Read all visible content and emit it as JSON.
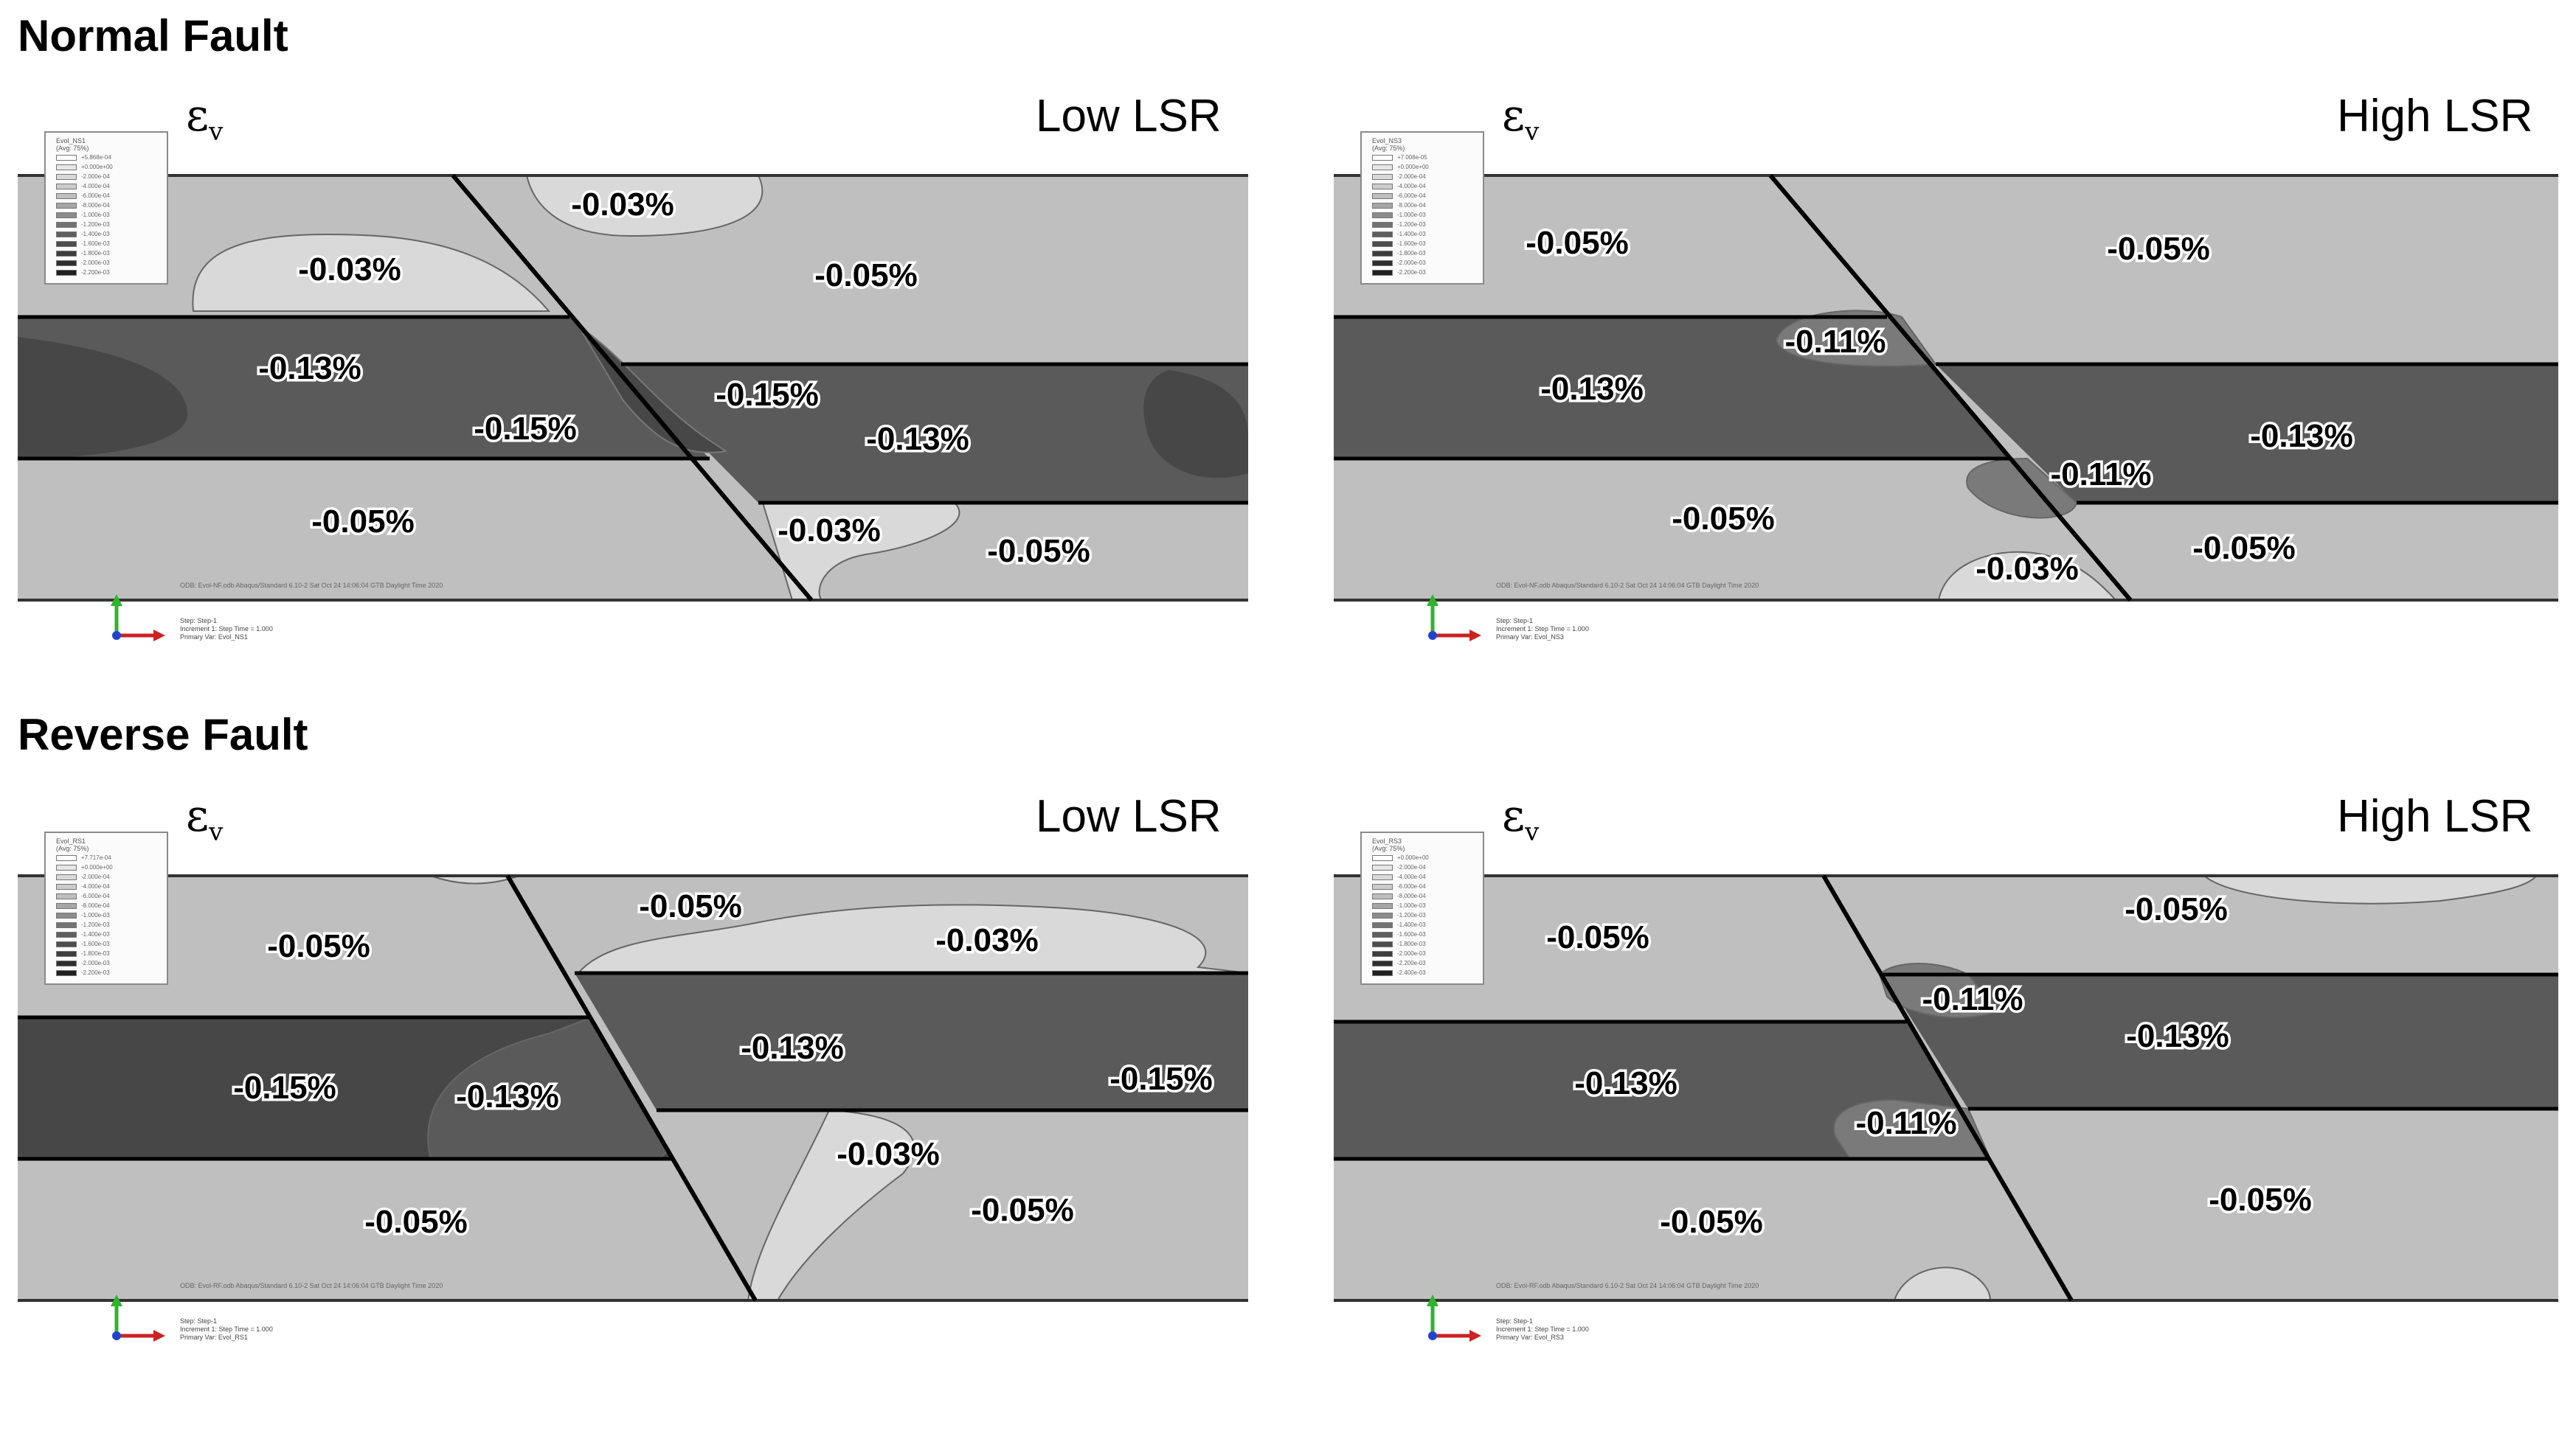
{
  "sections": {
    "normal_title": "Normal Fault",
    "reverse_title": "Reverse Fault"
  },
  "strain_symbol": "ε",
  "strain_subscript": "v",
  "colors": {
    "background": "#ffffff",
    "contour_light": "#d9d9d9",
    "contour_mid": "#bfbfbf",
    "contour_dark": "#5a5a5a",
    "contour_darker": "#474747",
    "fault_line": "#000000",
    "axis_y": "#2db52d",
    "axis_x": "#cc2222"
  },
  "legend_colors": [
    "#ffffff",
    "#e6e6e6",
    "#d9d9d9",
    "#cccccc",
    "#bfbfbf",
    "#a6a6a6",
    "#8c8c8c",
    "#737373",
    "#5f5f5f",
    "#4d4d4d",
    "#3d3d3d",
    "#2e2e2e",
    "#1f1f1f"
  ],
  "panels": [
    {
      "id": "normal-low",
      "label": "Low LSR",
      "legend": {
        "title": [
          "Evol_NS1",
          "(Avg: 75%)"
        ],
        "values": [
          "+5.868e-04",
          "+0.000e+00",
          "-2.000e-04",
          "-4.000e-04",
          "-6.000e-04",
          "-8.000e-04",
          "-1.000e-03",
          "-1.200e-03",
          "-1.400e-03",
          "-1.600e-03",
          "-1.800e-03",
          "-2.000e-03",
          "-2.200e-03"
        ]
      },
      "odb": "ODB: Evol-NF.odb    Abaqus/Standard 6.10-2    Sat Oct 24 14:06:04 GTB Daylight Time 2020",
      "step": [
        "Step: Step-1",
        "Increment      1: Step Time =    1.000",
        "Primary Var: Evol_NS1"
      ],
      "zones": [
        "-0.03%",
        "-0.03%",
        "-0.05%",
        "-0.13%",
        "-0.15%",
        "-0.15%",
        "-0.13%",
        "-0.05%",
        "-0.03%",
        "-0.05%"
      ]
    },
    {
      "id": "normal-high",
      "label": "High LSR",
      "legend": {
        "title": [
          "Evol_NS3",
          "(Avg: 75%)"
        ],
        "values": [
          "+7.008e-05",
          "+0.000e+00",
          "-2.000e-04",
          "-4.000e-04",
          "-6.000e-04",
          "-8.000e-04",
          "-1.000e-03",
          "-1.200e-03",
          "-1.400e-03",
          "-1.600e-03",
          "-1.800e-03",
          "-2.000e-03",
          "-2.200e-03"
        ]
      },
      "odb": "ODB: Evol-NF.odb    Abaqus/Standard 6.10-2    Sat Oct 24 14:06:04 GTB Daylight Time 2020",
      "step": [
        "Step: Step-1",
        "Increment      1: Step Time =    1.000",
        "Primary Var: Evol_NS3"
      ],
      "zones": [
        "-0.05%",
        "-0.05%",
        "-0.11%",
        "-0.13%",
        "-0.13%",
        "-0.11%",
        "-0.05%",
        "-0.05%",
        "-0.03%"
      ]
    },
    {
      "id": "reverse-low",
      "label": "Low LSR",
      "legend": {
        "title": [
          "Evol_RS1",
          "(Avg: 75%)"
        ],
        "values": [
          "+7.717e-04",
          "+0.000e+00",
          "-2.000e-04",
          "-4.000e-04",
          "-6.000e-04",
          "-8.000e-04",
          "-1.000e-03",
          "-1.200e-03",
          "-1.400e-03",
          "-1.600e-03",
          "-1.800e-03",
          "-2.000e-03",
          "-2.200e-03"
        ]
      },
      "odb": "ODB: Evol-RF.odb    Abaqus/Standard 6.10-2    Sat Oct 24 14:06:04 GTB Daylight Time 2020",
      "step": [
        "Step: Step-1",
        "Increment      1: Step Time =    1.000",
        "Primary Var: Evol_RS1"
      ],
      "zones": [
        "-0.05%",
        "-0.05%",
        "-0.03%",
        "-0.13%",
        "-0.15%",
        "-0.13%",
        "-0.15%",
        "-0.03%",
        "-0.05%",
        "-0.05%"
      ]
    },
    {
      "id": "reverse-high",
      "label": "High LSR",
      "legend": {
        "title": [
          "Evol_RS3",
          "(Avg: 75%)"
        ],
        "values": [
          "+0.000e+00",
          "-2.000e-04",
          "-4.000e-04",
          "-6.000e-04",
          "-8.000e-04",
          "-1.000e-03",
          "-1.200e-03",
          "-1.400e-03",
          "-1.600e-03",
          "-1.800e-03",
          "-2.000e-03",
          "-2.200e-03",
          "-2.400e-03"
        ]
      },
      "odb": "ODB: Evol-RF.odb    Abaqus/Standard 6.10-2    Sat Oct 24 14:06:04 GTB Daylight Time 2020",
      "step": [
        "Step: Step-1",
        "Increment      1: Step Time =    1.000",
        "Primary Var: Evol_RS3"
      ],
      "zones": [
        "-0.05%",
        "-0.05%",
        "-0.11%",
        "-0.13%",
        "-0.13%",
        "-0.11%",
        "-0.05%",
        "-0.05%"
      ]
    }
  ]
}
